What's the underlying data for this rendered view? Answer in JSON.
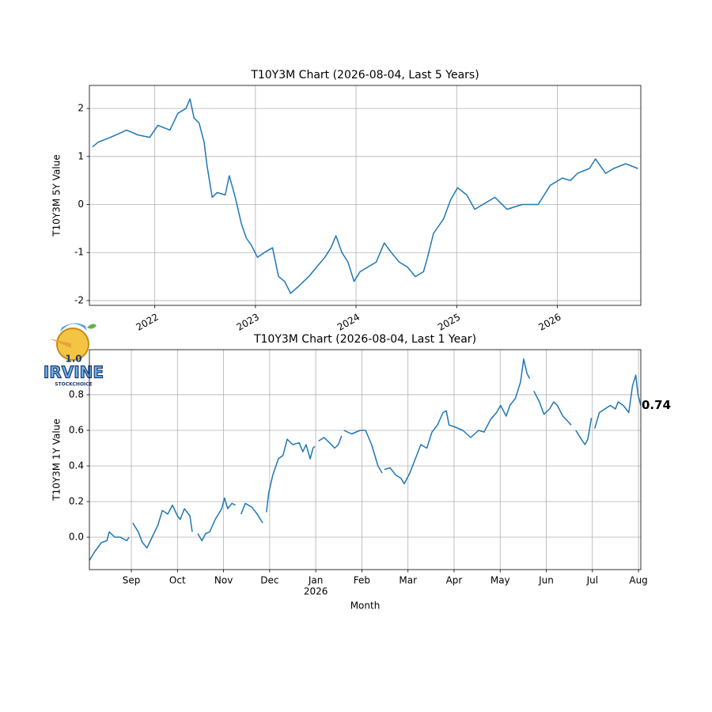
{
  "logo": {
    "version": "1.0",
    "name": "IRVINE",
    "tagline": "STOCKCHOICE"
  },
  "chart_data": [
    {
      "type": "line",
      "title": "T10Y3M Chart (2026-08-04, Last 5 Years)",
      "y_label": "T10Y3M 5Y Value",
      "color": "#1f77b4",
      "grid": true,
      "xlim": [
        2021.35,
        2026.83
      ],
      "xticks": [
        2022,
        2023,
        2024,
        2025,
        2026
      ],
      "ylim": [
        -2.1,
        2.48
      ],
      "yticks": [
        -2,
        -1,
        0,
        1,
        2
      ],
      "x": [
        2021.38,
        2021.44,
        2021.56,
        2021.72,
        2021.83,
        2021.95,
        2022.03,
        2022.15,
        2022.23,
        2022.31,
        2022.35,
        2022.39,
        2022.44,
        2022.49,
        2022.52,
        2022.57,
        2022.62,
        2022.7,
        2022.74,
        2022.8,
        2022.86,
        2022.91,
        2022.96,
        2023.02,
        2023.09,
        2023.17,
        2023.23,
        2023.29,
        2023.35,
        2023.43,
        2023.53,
        2023.61,
        2023.69,
        2023.75,
        2023.8,
        2023.86,
        2023.92,
        2023.98,
        2024.04,
        2024.12,
        2024.2,
        2024.28,
        2024.35,
        2024.43,
        2024.51,
        2024.59,
        2024.67,
        2024.71,
        2024.77,
        2024.87,
        2024.94,
        2025.01,
        2025.1,
        2025.18,
        2025.26,
        2025.38,
        2025.5,
        2025.65,
        2025.81,
        2025.93,
        2026.05,
        2026.13,
        2026.2,
        2026.32,
        2026.38,
        2026.48,
        2026.56,
        2026.68,
        2026.8
      ],
      "values": [
        1.2,
        1.3,
        1.4,
        1.55,
        1.45,
        1.4,
        1.65,
        1.55,
        1.9,
        2.0,
        2.2,
        1.8,
        1.7,
        1.3,
        0.8,
        0.15,
        0.25,
        0.2,
        0.6,
        0.15,
        -0.4,
        -0.7,
        -0.85,
        -1.1,
        -1.0,
        -0.9,
        -1.5,
        -1.6,
        -1.85,
        -1.7,
        -1.5,
        -1.3,
        -1.1,
        -0.9,
        -0.65,
        -1.0,
        -1.2,
        -1.6,
        -1.4,
        -1.3,
        -1.2,
        -0.8,
        -1.0,
        -1.2,
        -1.3,
        -1.5,
        -1.4,
        -1.1,
        -0.6,
        -0.3,
        0.1,
        0.35,
        0.2,
        -0.1,
        0.0,
        0.15,
        -0.1,
        0.0,
        0.0,
        0.4,
        0.55,
        0.5,
        0.65,
        0.75,
        0.95,
        0.65,
        0.75,
        0.85,
        0.75
      ]
    },
    {
      "type": "line",
      "title": "T10Y3M Chart (2026-08-04, Last 1 Year)",
      "y_label": "T10Y3M 1Y Value",
      "x_label": "Month",
      "color": "#1f77b4",
      "grid": true,
      "xlim": [
        8.09,
        20.05
      ],
      "xticks": [
        {
          "value": 9,
          "label": "Sep"
        },
        {
          "value": 10,
          "label": "Oct"
        },
        {
          "value": 11,
          "label": "Nov"
        },
        {
          "value": 12,
          "label": "Dec"
        },
        {
          "value": 13,
          "label": "Jan",
          "sublabel": "2026"
        },
        {
          "value": 14,
          "label": "Feb"
        },
        {
          "value": 15,
          "label": "Mar"
        },
        {
          "value": 16,
          "label": "Apr"
        },
        {
          "value": 17,
          "label": "May"
        },
        {
          "value": 18,
          "label": "Jun"
        },
        {
          "value": 19,
          "label": "Jul"
        },
        {
          "value": 20,
          "label": "Aug"
        }
      ],
      "ylim": [
        -0.182,
        1.053
      ],
      "yticks": [
        {
          "value": 0,
          "label": "0.0"
        },
        0.2,
        0.4,
        0.6,
        0.8
      ],
      "x": [
        8.09,
        8.21,
        8.35,
        8.47,
        8.52,
        8.64,
        8.76,
        8.9,
        8.95,
        8.98,
        9.03,
        9.15,
        9.24,
        9.34,
        9.45,
        9.58,
        9.67,
        9.79,
        9.89,
        10.0,
        10.06,
        10.15,
        10.27,
        10.32,
        10.38,
        10.44,
        10.53,
        10.61,
        10.7,
        10.82,
        10.96,
        11.02,
        11.09,
        11.18,
        11.26,
        11.32,
        11.38,
        11.47,
        11.61,
        11.73,
        11.85,
        11.89,
        11.93,
        11.98,
        12.07,
        12.19,
        12.29,
        12.38,
        12.5,
        12.64,
        12.72,
        12.79,
        12.88,
        12.94,
        12.98,
        13.02,
        13.06,
        13.18,
        13.3,
        13.41,
        13.49,
        13.56,
        13.59,
        13.61,
        13.78,
        13.96,
        14.08,
        14.21,
        14.35,
        14.44,
        14.46,
        14.49,
        14.61,
        14.73,
        14.85,
        14.92,
        15.04,
        15.16,
        15.28,
        15.41,
        15.52,
        15.64,
        15.76,
        15.83,
        15.89,
        16.01,
        16.19,
        16.36,
        16.53,
        16.65,
        16.79,
        16.92,
        17.01,
        17.13,
        17.21,
        17.33,
        17.44,
        17.51,
        17.58,
        17.64,
        17.69,
        17.73,
        17.85,
        17.95,
        18.07,
        18.16,
        18.24,
        18.36,
        18.47,
        18.54,
        18.58,
        18.64,
        18.76,
        18.84,
        18.9,
        18.98,
        19.01,
        19.05,
        19.15,
        19.27,
        19.39,
        19.5,
        19.56,
        19.67,
        19.79,
        19.87,
        19.94,
        19.99,
        20.05
      ],
      "values": [
        -0.13,
        -0.08,
        -0.03,
        -0.02,
        0.03,
        0.0,
        0.0,
        -0.02,
        0.0,
        null,
        0.08,
        0.03,
        -0.03,
        -0.06,
        0.0,
        0.07,
        0.15,
        0.13,
        0.18,
        0.12,
        0.1,
        0.16,
        0.12,
        0.03,
        null,
        0.02,
        -0.02,
        0.02,
        0.03,
        0.1,
        0.16,
        0.22,
        0.16,
        0.19,
        0.18,
        null,
        0.13,
        0.19,
        0.17,
        0.13,
        0.08,
        null,
        0.14,
        0.25,
        0.35,
        0.44,
        0.46,
        0.55,
        0.52,
        0.53,
        0.48,
        0.52,
        0.44,
        0.5,
        0.51,
        null,
        0.54,
        0.56,
        0.53,
        0.5,
        0.52,
        0.57,
        null,
        0.6,
        0.58,
        0.6,
        0.6,
        0.52,
        0.4,
        0.36,
        null,
        0.38,
        0.39,
        0.35,
        0.33,
        0.3,
        0.36,
        0.44,
        0.52,
        0.5,
        0.59,
        0.63,
        0.7,
        0.71,
        0.63,
        0.62,
        0.6,
        0.56,
        0.6,
        0.59,
        0.66,
        0.7,
        0.74,
        0.68,
        0.74,
        0.78,
        0.87,
        1.0,
        0.92,
        0.89,
        null,
        0.82,
        0.76,
        0.69,
        0.72,
        0.76,
        0.74,
        0.68,
        0.65,
        0.63,
        null,
        0.6,
        0.55,
        0.52,
        0.55,
        0.67,
        null,
        0.61,
        0.7,
        0.72,
        0.74,
        0.72,
        0.76,
        0.74,
        0.7,
        0.85,
        0.91,
        0.8,
        0.74
      ]
    }
  ]
}
